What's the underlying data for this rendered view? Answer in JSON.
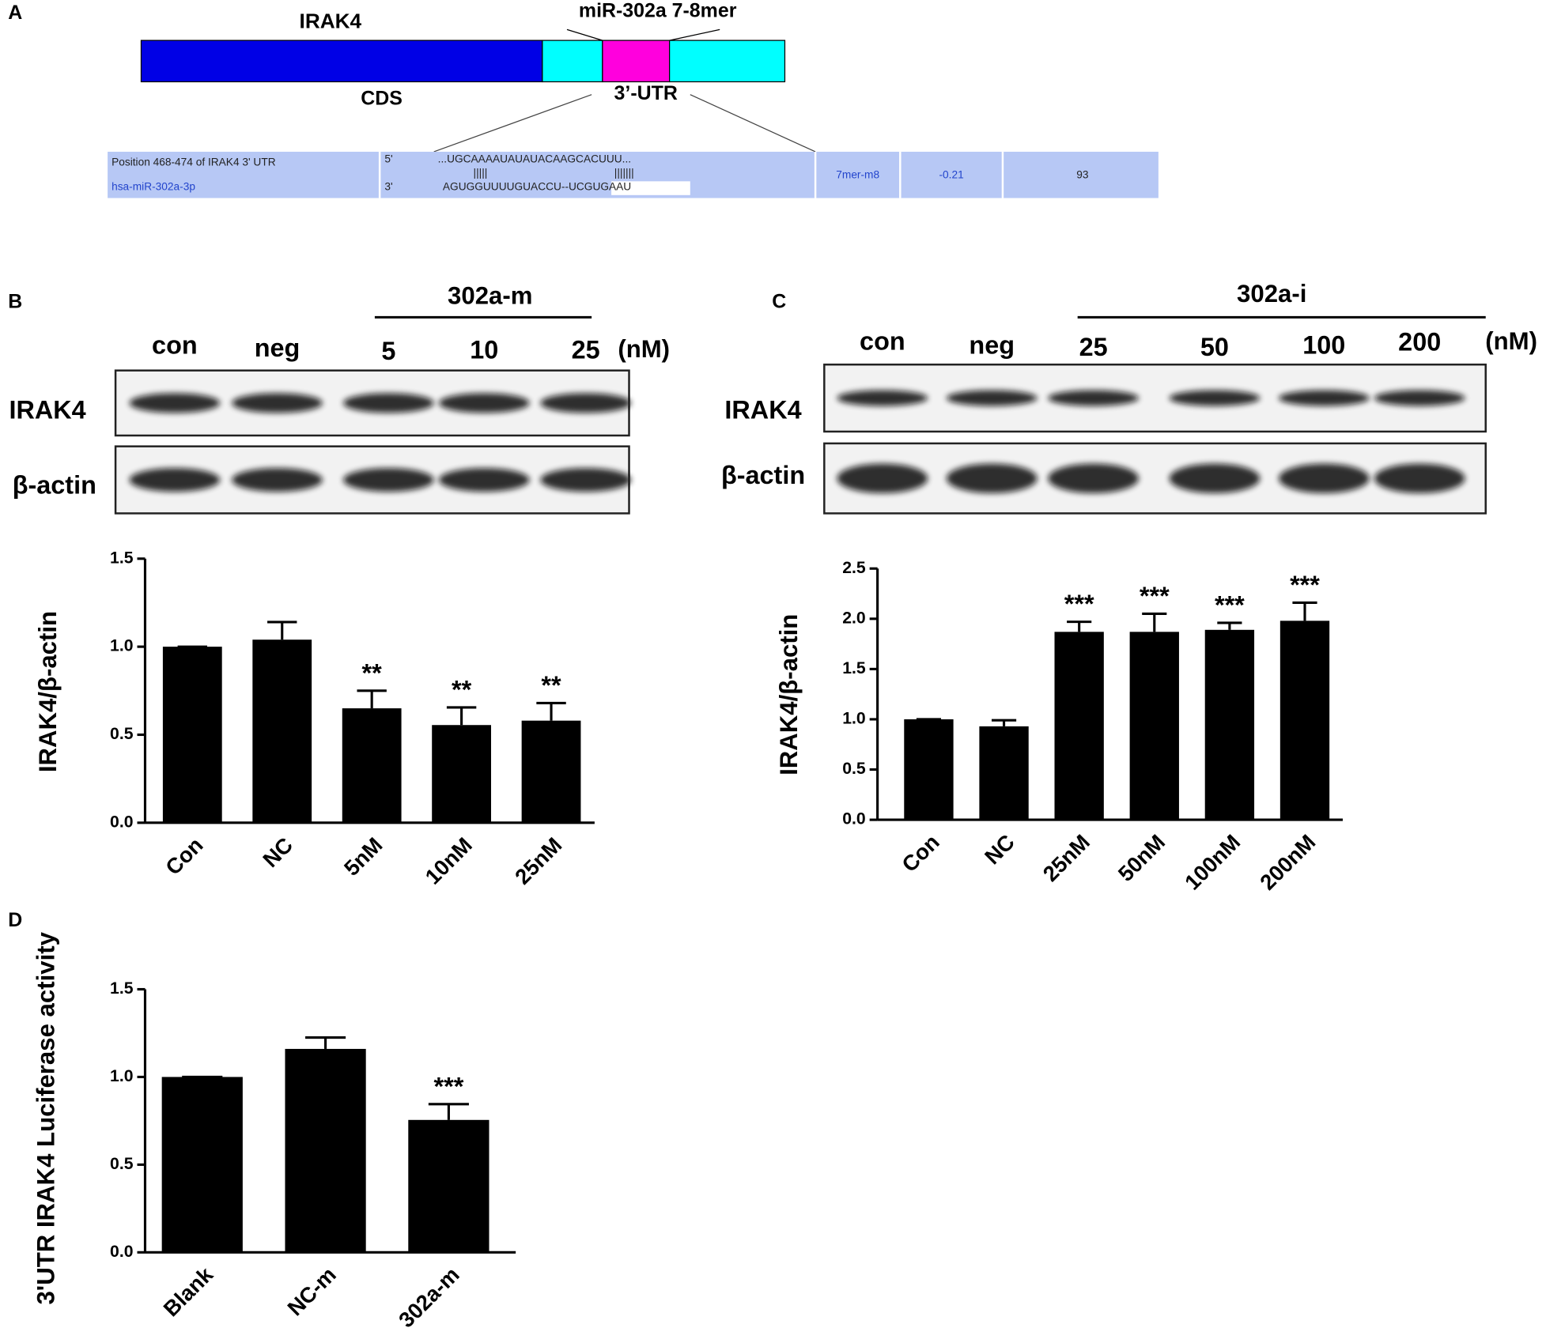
{
  "panel_labels": [
    "A",
    "B",
    "C",
    "D"
  ],
  "panel_a": {
    "gene": "IRAK4",
    "site": "miR-302a 7-8mer",
    "cds": "CDS",
    "utr": "3’-UTR",
    "table": {
      "position": "Position 468-474 of IRAK4 3' UTR",
      "mirna": "hsa-miR-302a-3p",
      "end5": "5'",
      "end3": "3'",
      "target": "...UGCAAAAUAUAUACAAGCACUUU...",
      "pairs_left": "|||||",
      "pairs_right": "|||||||",
      "mirna_seq": "AGUGGUUUUGUACCU--UCGUGAAU",
      "site_type": "7mer-m8",
      "score": -0.21,
      "percentile": 93
    }
  },
  "blots": [
    {
      "treatment": "302a-m",
      "lanes": [
        "con",
        "neg",
        "5",
        "10",
        "25"
      ],
      "unit": "(nM)",
      "rows": [
        "IRAK4",
        "β-actin"
      ]
    },
    {
      "treatment": "302a-i",
      "lanes": [
        "con",
        "neg",
        "25",
        "50",
        "100",
        "200"
      ],
      "unit": "(nM)",
      "rows": [
        "IRAK4",
        "β-actin"
      ]
    }
  ],
  "chart_data": [
    {
      "type": "bar",
      "y_label": "IRAK4/β-actin",
      "categories": [
        "Con",
        "NC",
        "5nM",
        "10nM",
        "25nM"
      ],
      "values": [
        1.0,
        1.04,
        0.65,
        0.555,
        0.58
      ],
      "errors": [
        0,
        0.1,
        0.1,
        0.1,
        0.1
      ],
      "significance": [
        null,
        null,
        "**",
        "**",
        "**"
      ],
      "color": "#000000",
      "ylim": [
        0,
        1.5
      ],
      "yticks": [
        {
          "value": 0,
          "label": "0.0"
        },
        {
          "value": 0.5,
          "label": "0.5"
        },
        {
          "value": 1,
          "label": "1.0"
        },
        {
          "value": 1.5,
          "label": "1.5"
        }
      ]
    },
    {
      "type": "bar",
      "y_label": "IRAK4/β-actin",
      "categories": [
        "Con",
        "NC",
        "25nM",
        "50nM",
        "100nM",
        "200nM"
      ],
      "values": [
        1.0,
        0.93,
        1.87,
        1.87,
        1.89,
        1.98
      ],
      "errors": [
        0,
        0.06,
        0.1,
        0.18,
        0.07,
        0.18
      ],
      "significance": [
        null,
        null,
        "***",
        "***",
        "***",
        "***"
      ],
      "color": "#000000",
      "ylim": [
        0,
        2.5
      ],
      "yticks": [
        {
          "value": 0,
          "label": "0.0"
        },
        {
          "value": 0.5,
          "label": "0.5"
        },
        {
          "value": 1,
          "label": "1.0"
        },
        {
          "value": 1.5,
          "label": "1.5"
        },
        {
          "value": 2,
          "label": "2.0"
        },
        {
          "value": 2.5,
          "label": "2.5"
        }
      ]
    },
    {
      "type": "bar",
      "y_label": "3'UTR IRAK4 Luciferase activity",
      "categories": [
        "Blank",
        "NC-m",
        "302a-m"
      ],
      "values": [
        1.0,
        1.16,
        0.755
      ],
      "errors": [
        0,
        0.065,
        0.09
      ],
      "significance": [
        null,
        null,
        "***"
      ],
      "color": "#000000",
      "ylim": [
        0,
        1.5
      ],
      "yticks": [
        {
          "value": 0,
          "label": "0.0"
        },
        {
          "value": 0.5,
          "label": "0.5"
        },
        {
          "value": 1,
          "label": "1.0"
        },
        {
          "value": 1.5,
          "label": "1.5"
        }
      ]
    }
  ]
}
